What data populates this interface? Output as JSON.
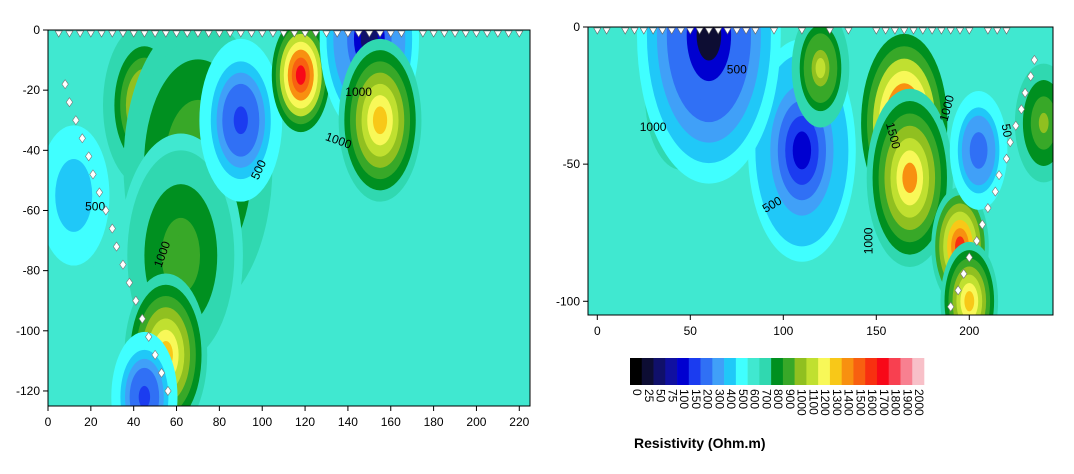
{
  "chart_data": [
    {
      "type": "heatmap",
      "name": "section-left",
      "xlim": [
        0,
        225
      ],
      "ylim": [
        -125,
        0
      ],
      "x_ticks": [
        0,
        20,
        40,
        60,
        80,
        100,
        120,
        140,
        160,
        180,
        200,
        220
      ],
      "y_ticks": [
        0,
        -20,
        -40,
        -60,
        -80,
        -100,
        -120
      ],
      "x_tick_labels": [
        "0",
        "20",
        "40",
        "60",
        "80",
        "100",
        "120",
        "140",
        "160",
        "180",
        "200",
        "220"
      ],
      "y_tick_labels": [
        "0",
        "-20",
        "-40",
        "-60",
        "-80",
        "-100",
        "-120"
      ],
      "background_value": 650,
      "blobs": [
        {
          "x": 45,
          "y": -25,
          "value": 1150,
          "r": 10
        },
        {
          "x": 70,
          "y": -45,
          "value": 1000,
          "r": 18
        },
        {
          "x": 62,
          "y": -75,
          "value": 950,
          "r": 15
        },
        {
          "x": 90,
          "y": -30,
          "value": 150,
          "r": 10
        },
        {
          "x": 118,
          "y": -15,
          "value": 1700,
          "r": 7
        },
        {
          "x": 150,
          "y": -3,
          "value": 50,
          "r": 12
        },
        {
          "x": 155,
          "y": -30,
          "value": 1300,
          "r": 10
        },
        {
          "x": 55,
          "y": -108,
          "value": 1300,
          "r": 10
        },
        {
          "x": 12,
          "y": -55,
          "value": 400,
          "r": 10
        },
        {
          "x": 45,
          "y": -122,
          "value": 150,
          "r": 8
        }
      ],
      "contour_labels": [
        {
          "text": "1000",
          "x": 145,
          "y": -22,
          "rotate": 0
        },
        {
          "text": "1000",
          "x": 135,
          "y": -38,
          "rotate": 20
        },
        {
          "text": "500",
          "x": 100,
          "y": -47,
          "rotate": -65
        },
        {
          "text": "500",
          "x": 22,
          "y": -60,
          "rotate": 0
        },
        {
          "text": "1000",
          "x": 55,
          "y": -75,
          "rotate": -70
        }
      ],
      "electrodes_top_x": [
        5,
        10,
        15,
        20,
        25,
        30,
        35,
        40,
        45,
        50,
        55,
        60,
        65,
        70,
        75,
        80,
        85,
        90,
        95,
        100,
        105,
        110,
        115,
        120,
        125,
        130,
        135,
        140,
        145,
        150,
        155,
        160,
        165,
        175,
        180,
        185,
        190,
        195,
        200,
        205,
        210,
        215,
        220
      ],
      "borehole_markers": [
        {
          "x": 8,
          "y": -18
        },
        {
          "x": 10,
          "y": -24
        },
        {
          "x": 13,
          "y": -30
        },
        {
          "x": 16,
          "y": -36
        },
        {
          "x": 19,
          "y": -42
        },
        {
          "x": 21,
          "y": -48
        },
        {
          "x": 24,
          "y": -54
        },
        {
          "x": 27,
          "y": -60
        },
        {
          "x": 30,
          "y": -66
        },
        {
          "x": 32,
          "y": -72
        },
        {
          "x": 35,
          "y": -78
        },
        {
          "x": 38,
          "y": -84
        },
        {
          "x": 41,
          "y": -90
        },
        {
          "x": 44,
          "y": -96
        },
        {
          "x": 47,
          "y": -102
        },
        {
          "x": 50,
          "y": -108
        },
        {
          "x": 53,
          "y": -114
        },
        {
          "x": 56,
          "y": -120
        }
      ]
    },
    {
      "type": "heatmap",
      "name": "section-right",
      "xlim": [
        -5,
        245
      ],
      "ylim": [
        -105,
        0
      ],
      "x_ticks": [
        0,
        50,
        100,
        150,
        200
      ],
      "y_ticks": [
        0,
        -50,
        -100
      ],
      "x_tick_labels": [
        "0",
        "50",
        "100",
        "150",
        "200"
      ],
      "y_tick_labels": [
        "0",
        "-50",
        "-100"
      ],
      "background_value": 650,
      "blobs": [
        {
          "x": 45,
          "y": -25,
          "value": 1250,
          "r": 10
        },
        {
          "x": 110,
          "y": -45,
          "value": 100,
          "r": 15
        },
        {
          "x": 60,
          "y": -3,
          "value": 30,
          "r": 20
        },
        {
          "x": 165,
          "y": -35,
          "value": 1700,
          "r": 12
        },
        {
          "x": 168,
          "y": -55,
          "value": 1400,
          "r": 12
        },
        {
          "x": 195,
          "y": -80,
          "value": 1600,
          "r": 8
        },
        {
          "x": 205,
          "y": -45,
          "value": 200,
          "r": 8
        },
        {
          "x": 200,
          "y": -100,
          "value": 1300,
          "r": 8
        },
        {
          "x": 240,
          "y": -35,
          "value": 1000,
          "r": 8
        },
        {
          "x": 120,
          "y": -15,
          "value": 1100,
          "r": 8
        }
      ],
      "contour_labels": [
        {
          "text": "500",
          "x": 75,
          "y": -17,
          "rotate": 0
        },
        {
          "text": "1000",
          "x": 30,
          "y": -38,
          "rotate": 0
        },
        {
          "text": "500",
          "x": 95,
          "y": -66,
          "rotate": -30
        },
        {
          "text": "1000",
          "x": 148,
          "y": -78,
          "rotate": -90
        },
        {
          "text": "1500",
          "x": 157,
          "y": -40,
          "rotate": 75
        },
        {
          "text": "1000",
          "x": 190,
          "y": -30,
          "rotate": -75
        },
        {
          "text": "50",
          "x": 218,
          "y": -38,
          "rotate": 80
        }
      ],
      "electrodes_top_x": [
        0,
        5,
        15,
        20,
        25,
        30,
        35,
        40,
        45,
        50,
        55,
        60,
        65,
        70,
        75,
        80,
        85,
        95,
        110,
        125,
        135,
        150,
        155,
        160,
        165,
        170,
        175,
        180,
        185,
        190,
        195,
        200,
        210,
        215,
        220
      ],
      "borehole_markers": [
        {
          "x": 235,
          "y": -12
        },
        {
          "x": 233,
          "y": -18
        },
        {
          "x": 230,
          "y": -24
        },
        {
          "x": 228,
          "y": -30
        },
        {
          "x": 225,
          "y": -36
        },
        {
          "x": 222,
          "y": -42
        },
        {
          "x": 220,
          "y": -48
        },
        {
          "x": 216,
          "y": -54
        },
        {
          "x": 214,
          "y": -60
        },
        {
          "x": 210,
          "y": -66
        },
        {
          "x": 207,
          "y": -72
        },
        {
          "x": 204,
          "y": -78
        },
        {
          "x": 200,
          "y": -84
        },
        {
          "x": 197,
          "y": -90
        },
        {
          "x": 194,
          "y": -96
        },
        {
          "x": 190,
          "y": -102
        }
      ]
    }
  ],
  "colorbar": {
    "title": "Resistivity (Ohm.m)",
    "levels": [
      "0",
      "25",
      "50",
      "75",
      "100",
      "150",
      "200",
      "300",
      "400",
      "500",
      "600",
      "700",
      "800",
      "900",
      "1000",
      "1100",
      "1200",
      "1300",
      "1400",
      "1500",
      "1600",
      "1700",
      "1800",
      "1900",
      "2000"
    ],
    "colors": [
      "#000000",
      "#0d0d33",
      "#10106a",
      "#1010a0",
      "#0000d0",
      "#1b3cf0",
      "#3070f5",
      "#40a0f8",
      "#20c8f8",
      "#40ffff",
      "#40e8d0",
      "#30d8b0",
      "#009020",
      "#38a828",
      "#90c020",
      "#c0e030",
      "#f8f858",
      "#f8c818",
      "#f89010",
      "#f86010",
      "#f83010",
      "#f80818",
      "#f84050",
      "#f88090",
      "#f8c0c8"
    ]
  }
}
